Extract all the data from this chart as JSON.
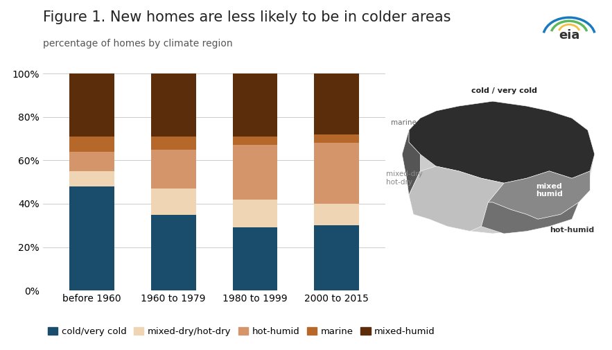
{
  "title": "Figure 1. New homes are less likely to be in colder areas",
  "subtitle": "percentage of homes by climate region",
  "categories": [
    "before 1960",
    "1960 to 1979",
    "1980 to 1999",
    "2000 to 2015"
  ],
  "series": {
    "cold/very cold": [
      0.48,
      0.35,
      0.29,
      0.3
    ],
    "mixed-dry/hot-dry": [
      0.07,
      0.12,
      0.13,
      0.1
    ],
    "hot-humid": [
      0.09,
      0.18,
      0.25,
      0.28
    ],
    "marine": [
      0.07,
      0.06,
      0.04,
      0.04
    ],
    "mixed-humid": [
      0.29,
      0.29,
      0.29,
      0.28
    ]
  },
  "colors": {
    "cold/very cold": "#1a4d6b",
    "mixed-dry/hot-dry": "#f0d5b5",
    "hot-humid": "#d4956a",
    "marine": "#b5682a",
    "mixed-humid": "#5c2d0a"
  },
  "legend_order": [
    "cold/very cold",
    "mixed-dry/hot-dry",
    "hot-humid",
    "marine",
    "mixed-humid"
  ],
  "ylim": [
    0,
    1.0
  ],
  "yticks": [
    0,
    0.2,
    0.4,
    0.6,
    0.8,
    1.0
  ],
  "ytick_labels": [
    "0%",
    "20%",
    "40%",
    "60%",
    "80%",
    "100%"
  ],
  "bar_width": 0.55,
  "background_color": "#ffffff",
  "title_fontsize": 15,
  "subtitle_fontsize": 10,
  "tick_fontsize": 10,
  "legend_fontsize": 9.5
}
